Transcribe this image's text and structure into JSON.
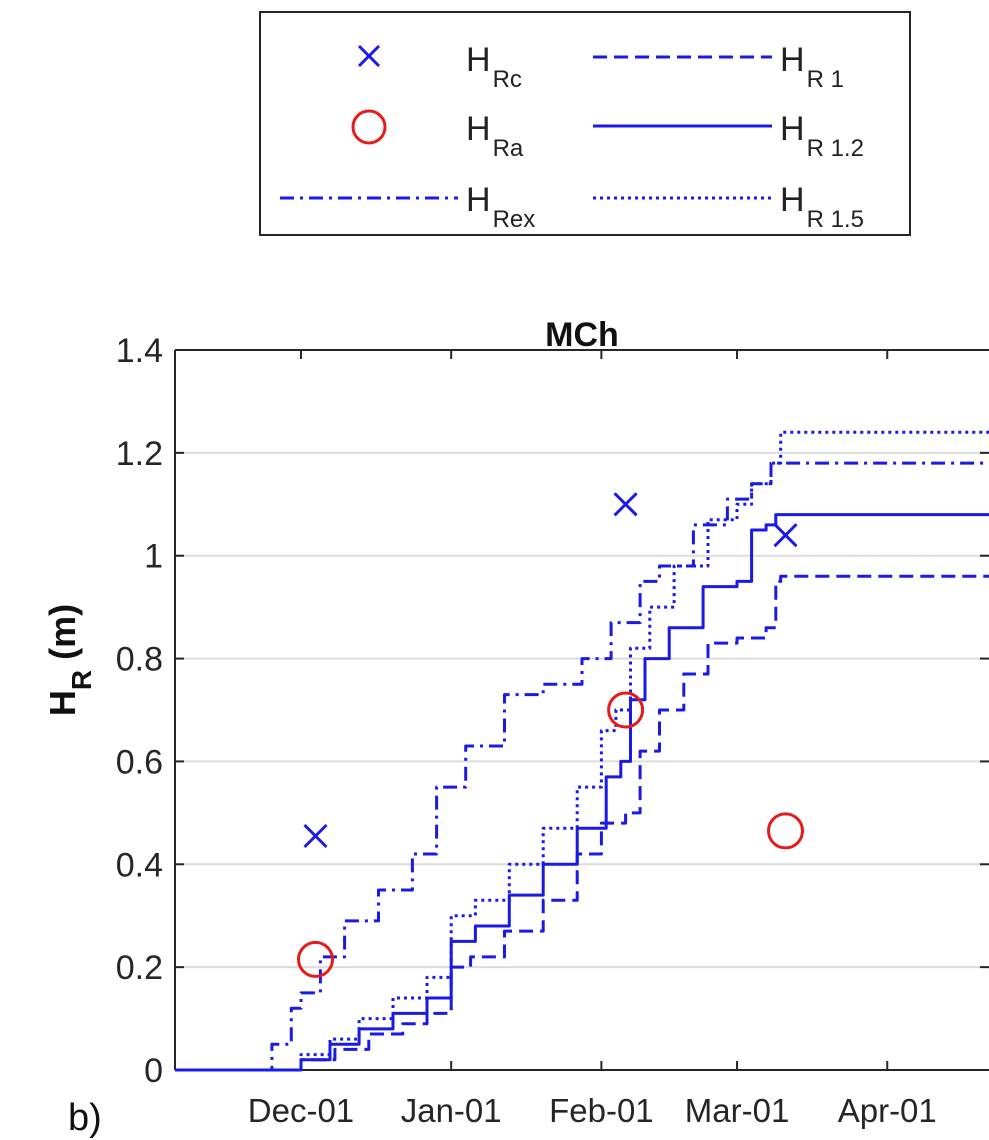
{
  "panel_label": "b)",
  "legend": {
    "items": [
      {
        "symbol": "x",
        "name": "H",
        "sub": "Rc",
        "color": "#1a1ae6"
      },
      {
        "symbol": "dashed",
        "name": "H",
        "sub": "R 1",
        "color": "#1a1ae6"
      },
      {
        "symbol": "o",
        "name": "H",
        "sub": "Ra",
        "color": "#e61a1a"
      },
      {
        "symbol": "solid",
        "name": "H",
        "sub": "R 1.2",
        "color": "#1a1ae6"
      },
      {
        "symbol": "dashdot",
        "name": "H",
        "sub": "Rex",
        "color": "#1a1ae6"
      },
      {
        "symbol": "dotted",
        "name": "H",
        "sub": "R 1.5",
        "color": "#1a1ae6"
      }
    ]
  },
  "chart_data": {
    "type": "line",
    "title": "MCh",
    "ylabel": "H",
    "ylabel_sub": "R",
    "ylabel_unit": " (m)",
    "xlabel": "",
    "x_is_date": true,
    "xlim": [
      "2000-11-05",
      "2001-04-22"
    ],
    "ylim": [
      0,
      1.4
    ],
    "yticks": [
      0,
      0.2,
      0.4,
      0.6,
      0.8,
      1,
      1.2,
      1.4
    ],
    "ytick_labels": [
      "0",
      "0.2",
      "0.4",
      "0.6",
      "0.8",
      "1",
      "1.2",
      "1.4"
    ],
    "xticks": [
      "2000-12-01",
      "2001-01-01",
      "2001-02-01",
      "2001-03-01",
      "2001-04-01"
    ],
    "xtick_labels": [
      "Dec-01",
      "Jan-01",
      "Feb-01",
      "Mar-01",
      "Apr-01"
    ],
    "grid": "horizontal",
    "colors": {
      "line": "#1a1ae6",
      "marker_x": "#1a1ae6",
      "marker_o": "#e61a1a",
      "grid": "#dcdcdc"
    },
    "series": [
      {
        "name": "H_R 1",
        "style": "dashed",
        "x": [
          "2000-11-05",
          "2000-11-25",
          "2000-12-01",
          "2000-12-08",
          "2000-12-15",
          "2000-12-22",
          "2000-12-27",
          "2001-01-01",
          "2001-01-05",
          "2001-01-12",
          "2001-01-20",
          "2001-01-27",
          "2001-02-01",
          "2001-02-06",
          "2001-02-09",
          "2001-02-13",
          "2001-02-18",
          "2001-02-23",
          "2001-03-01",
          "2001-03-07",
          "2001-03-09",
          "2001-03-10",
          "2001-04-22"
        ],
        "y": [
          0,
          0,
          0.02,
          0.04,
          0.07,
          0.09,
          0.11,
          0.2,
          0.22,
          0.27,
          0.33,
          0.42,
          0.48,
          0.5,
          0.62,
          0.7,
          0.77,
          0.83,
          0.84,
          0.86,
          0.95,
          0.96,
          0.96
        ]
      },
      {
        "name": "H_R 1.2",
        "style": "solid",
        "x": [
          "2000-11-05",
          "2000-11-25",
          "2000-12-01",
          "2000-12-07",
          "2000-12-13",
          "2000-12-20",
          "2000-12-27",
          "2001-01-01",
          "2001-01-06",
          "2001-01-13",
          "2001-01-20",
          "2001-01-27",
          "2001-02-02",
          "2001-02-05",
          "2001-02-07",
          "2001-02-10",
          "2001-02-15",
          "2001-02-22",
          "2001-03-01",
          "2001-03-04",
          "2001-03-07",
          "2001-03-09",
          "2001-04-22"
        ],
        "y": [
          0,
          0,
          0.02,
          0.05,
          0.08,
          0.11,
          0.14,
          0.25,
          0.28,
          0.34,
          0.4,
          0.47,
          0.57,
          0.6,
          0.72,
          0.8,
          0.86,
          0.94,
          0.95,
          1.05,
          1.06,
          1.08,
          1.08
        ]
      },
      {
        "name": "H_R 1.5",
        "style": "dotted",
        "x": [
          "2000-11-05",
          "2000-11-25",
          "2000-12-01",
          "2000-12-07",
          "2000-12-13",
          "2000-12-20",
          "2000-12-27",
          "2001-01-01",
          "2001-01-06",
          "2001-01-13",
          "2001-01-20",
          "2001-01-27",
          "2001-02-01",
          "2001-02-04",
          "2001-02-07",
          "2001-02-11",
          "2001-02-16",
          "2001-02-23",
          "2001-03-01",
          "2001-03-04",
          "2001-03-08",
          "2001-03-10",
          "2001-04-22"
        ],
        "y": [
          0,
          0,
          0.03,
          0.06,
          0.1,
          0.14,
          0.18,
          0.3,
          0.33,
          0.4,
          0.47,
          0.55,
          0.66,
          0.7,
          0.82,
          0.9,
          0.98,
          1.07,
          1.1,
          1.14,
          1.18,
          1.24,
          1.24
        ]
      },
      {
        "name": "H_R ex",
        "style": "dashdot",
        "x": [
          "2000-11-05",
          "2000-11-22",
          "2000-11-25",
          "2000-11-29",
          "2000-12-01",
          "2000-12-05",
          "2000-12-10",
          "2000-12-17",
          "2000-12-24",
          "2000-12-29",
          "2001-01-04",
          "2001-01-12",
          "2001-01-20",
          "2001-01-28",
          "2001-02-03",
          "2001-02-09",
          "2001-02-13",
          "2001-02-20",
          "2001-02-27",
          "2001-03-04",
          "2001-03-08",
          "2001-03-10",
          "2001-04-22"
        ],
        "y": [
          0,
          0,
          0.05,
          0.12,
          0.15,
          0.22,
          0.29,
          0.35,
          0.42,
          0.55,
          0.63,
          0.73,
          0.75,
          0.8,
          0.87,
          0.95,
          0.98,
          1.06,
          1.11,
          1.14,
          1.18,
          1.18,
          1.18
        ]
      }
    ],
    "markers": [
      {
        "series": "H_Rc",
        "symbol": "x",
        "x": [
          "2000-12-04",
          "2001-02-06",
          "2001-03-11"
        ],
        "y": [
          0.455,
          1.1,
          1.04
        ]
      },
      {
        "series": "H_Ra",
        "symbol": "o",
        "x": [
          "2000-12-04",
          "2001-02-06",
          "2001-03-11"
        ],
        "y": [
          0.215,
          0.7,
          0.465
        ]
      }
    ]
  }
}
